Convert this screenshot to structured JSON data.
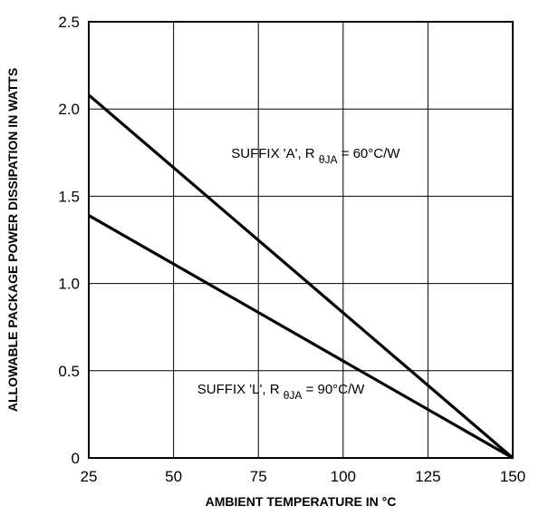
{
  "chart_data": {
    "type": "line",
    "title": "",
    "xlabel": "AMBIENT  TEMPERATURE  IN °C",
    "ylabel": "ALLOWABLE PACKAGE POWER DISSIPATION IN WATTS",
    "xlim": [
      25,
      150
    ],
    "ylim": [
      0,
      2.5
    ],
    "x_ticks": [
      25,
      50,
      75,
      100,
      125,
      150
    ],
    "x_tick_labels": [
      "25",
      "50",
      "75",
      "100",
      "125",
      "150"
    ],
    "y_ticks": [
      0,
      0.5,
      1.0,
      1.5,
      2.0,
      2.5
    ],
    "y_tick_labels": [
      "0",
      "0.5",
      "1.0",
      "1.5",
      "2.0",
      "2.5"
    ],
    "grid": true,
    "series": [
      {
        "x": [
          25,
          150
        ],
        "y": [
          2.08,
          0
        ]
      },
      {
        "x": [
          25,
          150
        ],
        "y": [
          1.39,
          0
        ]
      }
    ],
    "annotations": [
      {
        "prefix": "SUFFIX 'A', R ",
        "subscript": "θJA",
        "suffix": " = 60°C/W",
        "x": 67,
        "y": 1.72
      },
      {
        "prefix": "SUFFIX 'L', R ",
        "subscript": "θJA",
        "suffix": " = 90°C/W",
        "x": 57,
        "y": 0.37
      }
    ]
  }
}
